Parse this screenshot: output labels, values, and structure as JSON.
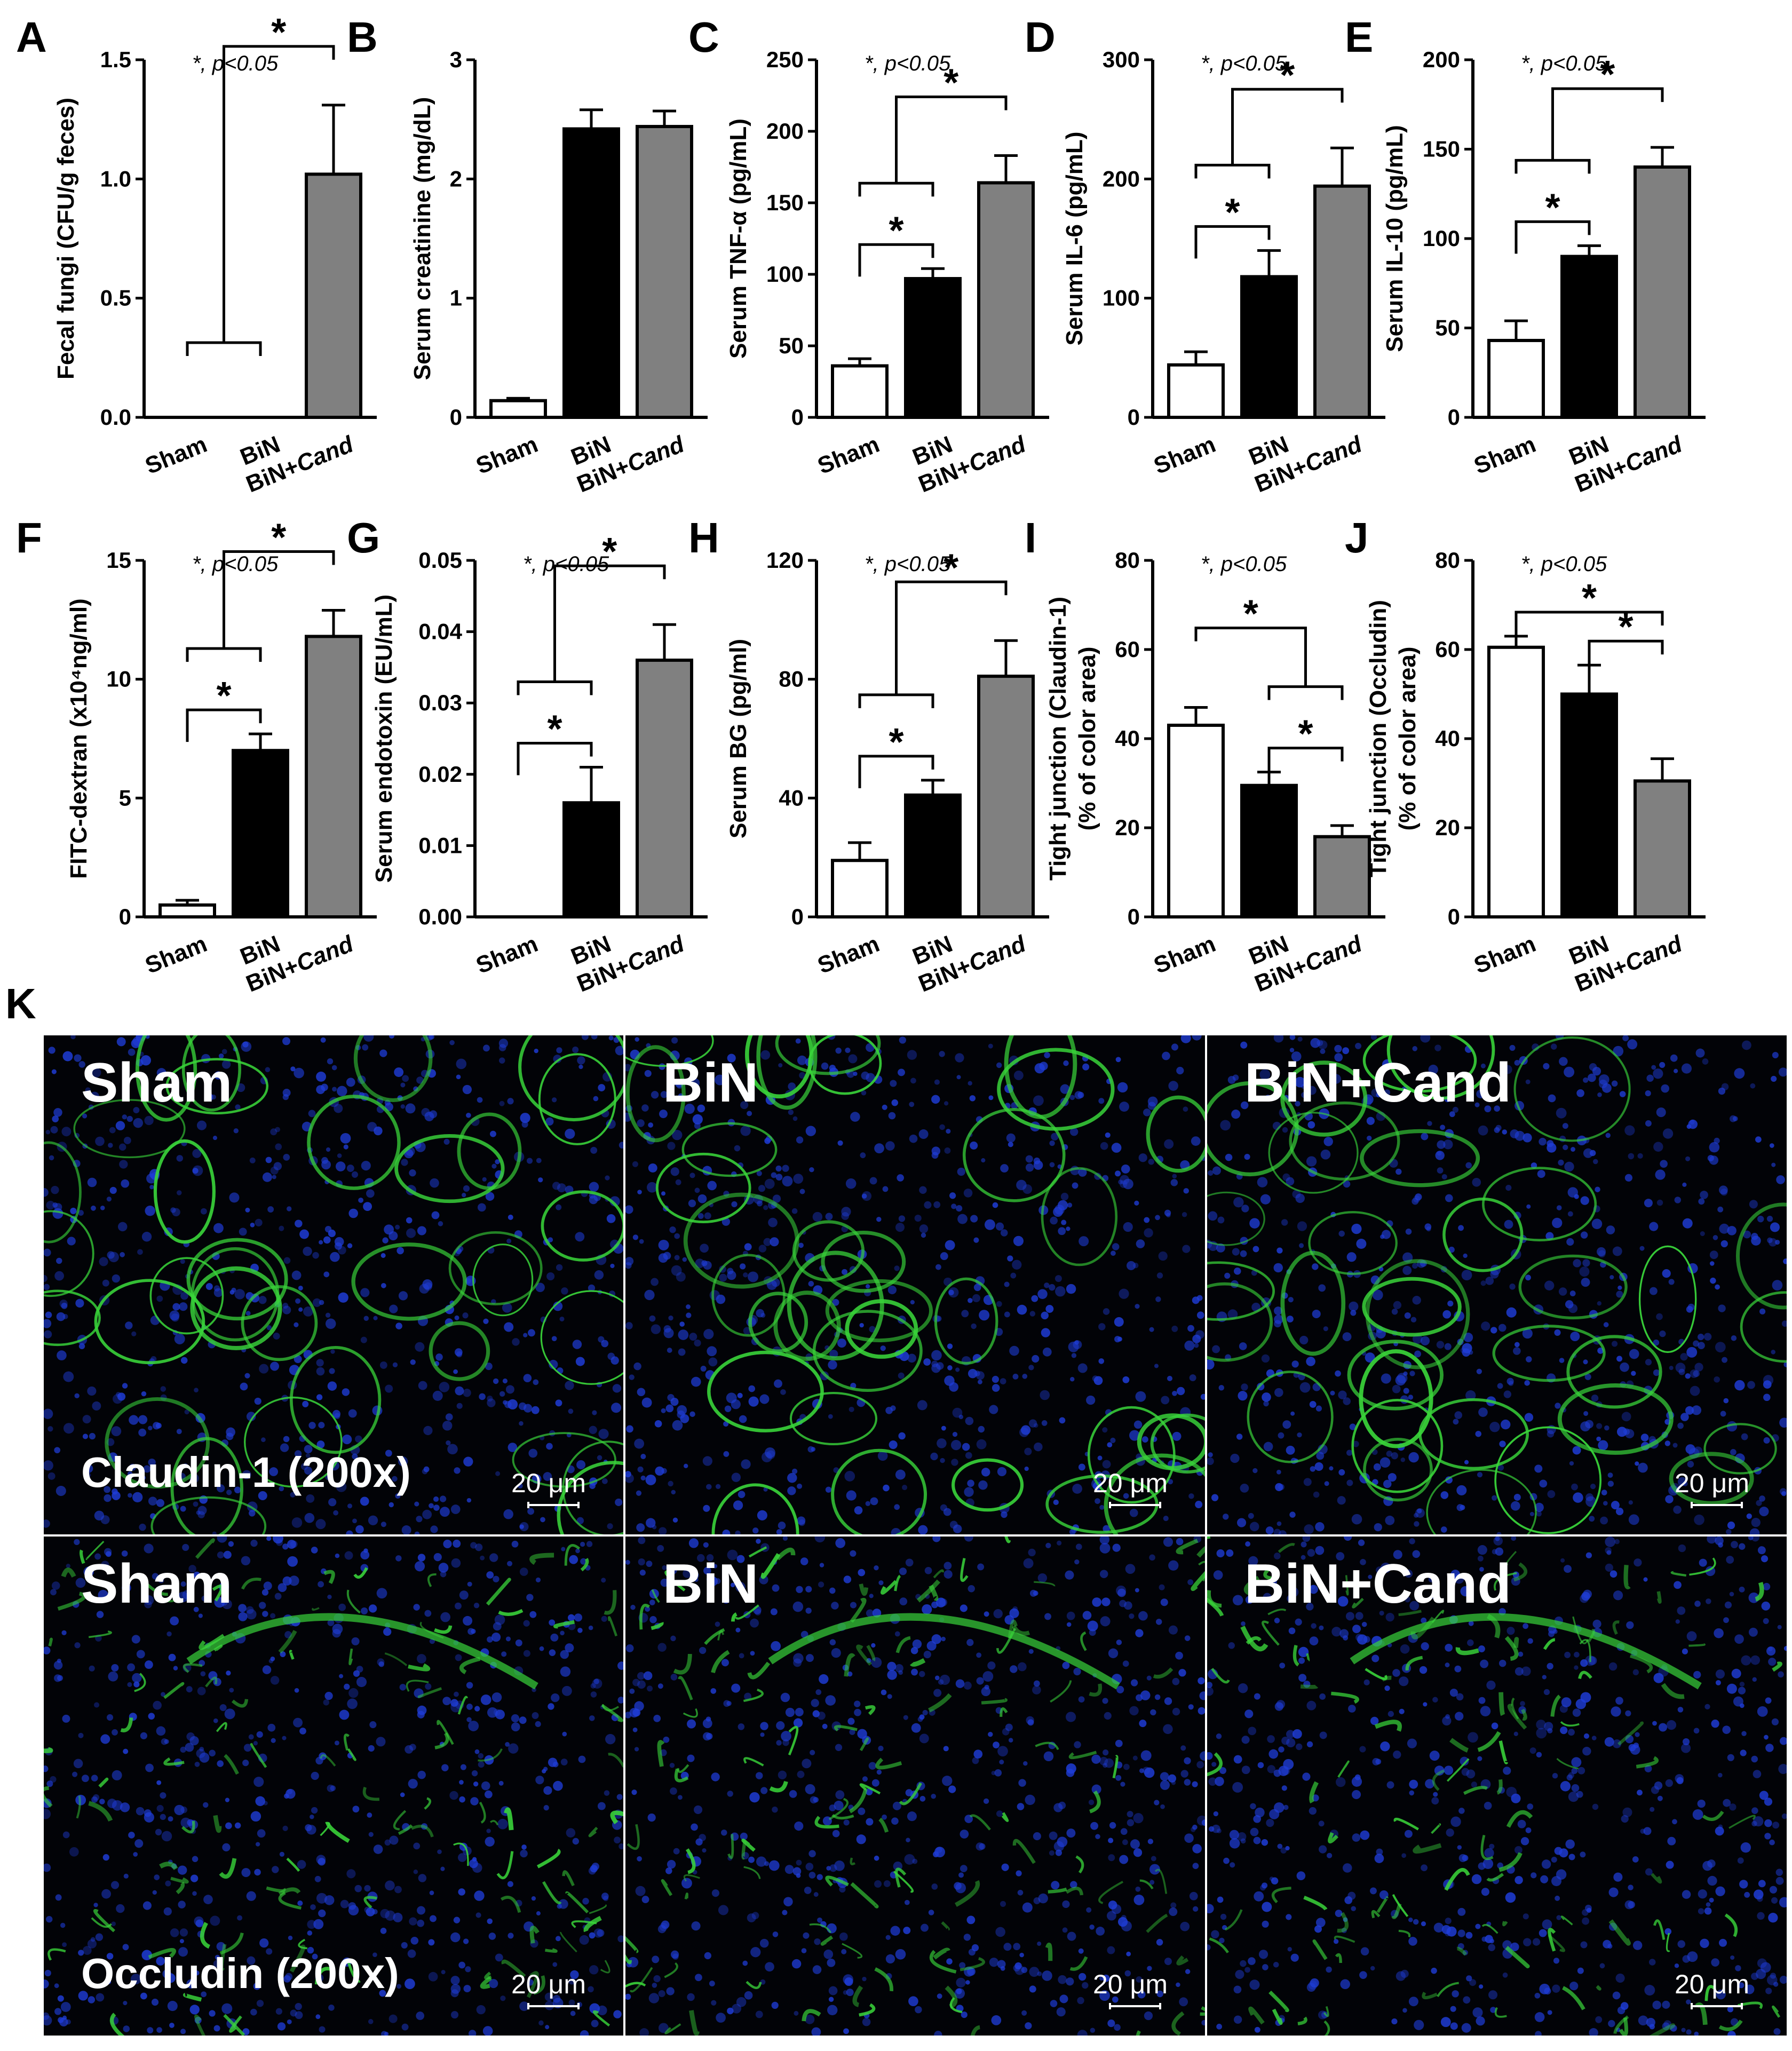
{
  "chart_data": [
    {
      "panel": "A",
      "type": "bar",
      "categories": [
        "Sham",
        "BiN",
        "BiN+Cand"
      ],
      "values": [
        0,
        0,
        1.02
      ],
      "errors": [
        0,
        0,
        0.29
      ],
      "ylabel": "Fecal fungi (CFU/g feces)",
      "ylim": [
        0,
        1.5
      ],
      "yticks": [
        "0.0",
        "0.5",
        "1.0",
        "1.5"
      ],
      "note": "*, p<0.05",
      "sig": [
        {
          "from": 0,
          "to": 1,
          "target": 2,
          "bracket": "grouped"
        }
      ]
    },
    {
      "panel": "B",
      "type": "bar",
      "categories": [
        "Sham",
        "BiN",
        "BiN+Cand"
      ],
      "values": [
        0.14,
        2.42,
        2.44
      ],
      "errors": [
        0.02,
        0.16,
        0.13
      ],
      "ylabel": "Serum creatinine (mg/dL)",
      "ylim": [
        0,
        3
      ],
      "yticks": [
        "0",
        "1",
        "2",
        "3"
      ],
      "note": "",
      "sig": []
    },
    {
      "panel": "C",
      "type": "bar",
      "categories": [
        "Sham",
        "BiN",
        "BiN+Cand"
      ],
      "values": [
        36,
        97,
        164
      ],
      "errors": [
        5,
        7,
        19
      ],
      "ylabel": "Serum TNF-α (pg/mL)",
      "ylim": [
        0,
        250
      ],
      "yticks": [
        "0",
        "50",
        "100",
        "150",
        "200",
        "250"
      ],
      "note": "*, p<0.05",
      "sig": [
        {
          "from": 0,
          "to": 1
        },
        {
          "from": 0,
          "to": 1,
          "target": 2,
          "bracket": "grouped"
        }
      ]
    },
    {
      "panel": "D",
      "type": "bar",
      "categories": [
        "Sham",
        "BiN",
        "BiN+Cand"
      ],
      "values": [
        44,
        118,
        194
      ],
      "errors": [
        11,
        22,
        32
      ],
      "ylabel": "Serum IL-6 (pg/mL)",
      "ylim": [
        0,
        300
      ],
      "yticks": [
        "0",
        "100",
        "200",
        "300"
      ],
      "note": "*, p<0.05",
      "sig": [
        {
          "from": 0,
          "to": 1
        },
        {
          "from": 0,
          "to": 1,
          "target": 2,
          "bracket": "grouped"
        }
      ]
    },
    {
      "panel": "E",
      "type": "bar",
      "categories": [
        "Sham",
        "BiN",
        "BiN+Cand"
      ],
      "values": [
        43,
        90,
        140
      ],
      "errors": [
        11,
        6,
        11
      ],
      "ylabel": "Serum IL-10 (pg/mL)",
      "ylim": [
        0,
        200
      ],
      "yticks": [
        "0",
        "50",
        "100",
        "150",
        "200"
      ],
      "note": "*, p<0.05",
      "sig": [
        {
          "from": 0,
          "to": 1
        },
        {
          "from": 0,
          "to": 1,
          "target": 2,
          "bracket": "grouped"
        }
      ]
    },
    {
      "panel": "F",
      "type": "bar",
      "categories": [
        "Sham",
        "BiN",
        "BiN+Cand"
      ],
      "values": [
        0.5,
        7.0,
        11.8
      ],
      "errors": [
        0.2,
        0.7,
        1.1
      ],
      "ylabel": "FITC-dextran (x10⁴ng/ml)",
      "ylim": [
        0,
        15
      ],
      "yticks": [
        "0",
        "5",
        "10",
        "15"
      ],
      "note": "*, p<0.05",
      "sig": [
        {
          "from": 0,
          "to": 1
        },
        {
          "from": 0,
          "to": 1,
          "target": 2,
          "bracket": "grouped"
        }
      ]
    },
    {
      "panel": "G",
      "type": "bar",
      "categories": [
        "Sham",
        "BiN",
        "BiN+Cand"
      ],
      "values": [
        0,
        0.016,
        0.036
      ],
      "errors": [
        0,
        0.005,
        0.005
      ],
      "ylabel": "Serum endotoxin (EU/mL)",
      "ylim": [
        0,
        0.05
      ],
      "yticks": [
        "0.00",
        "0.01",
        "0.02",
        "0.03",
        "0.04",
        "0.05"
      ],
      "note": "*, p<0.05",
      "sig": [
        {
          "from": 0,
          "to": 1
        },
        {
          "from": 0,
          "to": 1,
          "target": 2,
          "bracket": "grouped"
        }
      ]
    },
    {
      "panel": "H",
      "type": "bar",
      "categories": [
        "Sham",
        "BiN",
        "BiN+Cand"
      ],
      "values": [
        19,
        41,
        81
      ],
      "errors": [
        6,
        5,
        12
      ],
      "ylabel": "Serum BG (pg/ml)",
      "ylim": [
        0,
        120
      ],
      "yticks": [
        "0",
        "40",
        "80",
        "120"
      ],
      "note": "*, p<0.05",
      "sig": [
        {
          "from": 0,
          "to": 1
        },
        {
          "from": 0,
          "to": 1,
          "target": 2,
          "bracket": "grouped"
        }
      ]
    },
    {
      "panel": "I",
      "type": "bar",
      "categories": [
        "Sham",
        "BiN",
        "BiN+Cand"
      ],
      "values": [
        43,
        29.5,
        18
      ],
      "errors": [
        4,
        3,
        2.5
      ],
      "ylabel": "Tight junction (Claudin-1)",
      "ylabel2": "(% of color area)",
      "ylim": [
        0,
        80
      ],
      "yticks": [
        "0",
        "20",
        "40",
        "60",
        "80"
      ],
      "note": "*, p<0.05",
      "sig": [
        {
          "from": 1,
          "to": 2
        },
        {
          "from": 1,
          "to": 2,
          "target": 0,
          "bracket": "grouped"
        }
      ]
    },
    {
      "panel": "J",
      "type": "bar",
      "categories": [
        "Sham",
        "BiN",
        "BiN+Cand"
      ],
      "values": [
        60.5,
        50,
        30.5
      ],
      "errors": [
        2.5,
        6.5,
        5
      ],
      "ylabel": "Tight junction (Occludin)",
      "ylabel2": "(% of color area)",
      "ylim": [
        0,
        80
      ],
      "yticks": [
        "0",
        "20",
        "40",
        "60",
        "80"
      ],
      "note": "*, p<0.05",
      "sig": [
        {
          "from": 1,
          "to": 2
        },
        {
          "from": 0,
          "to": 2
        }
      ]
    }
  ],
  "bar_colors": [
    "#ffffff",
    "#000000",
    "#808080"
  ],
  "micrograph": {
    "panel": "K",
    "columns": [
      "Sham",
      "BiN",
      "BiN+Cand"
    ],
    "rows": [
      {
        "marker": "Claudin-1 (200x)",
        "scale": "20 μm"
      },
      {
        "marker": "Occludin (200x)",
        "scale": "20 μm"
      }
    ],
    "stain_colors": {
      "membrane": "#39d43a",
      "nuclei": "#1f3dd8"
    }
  }
}
